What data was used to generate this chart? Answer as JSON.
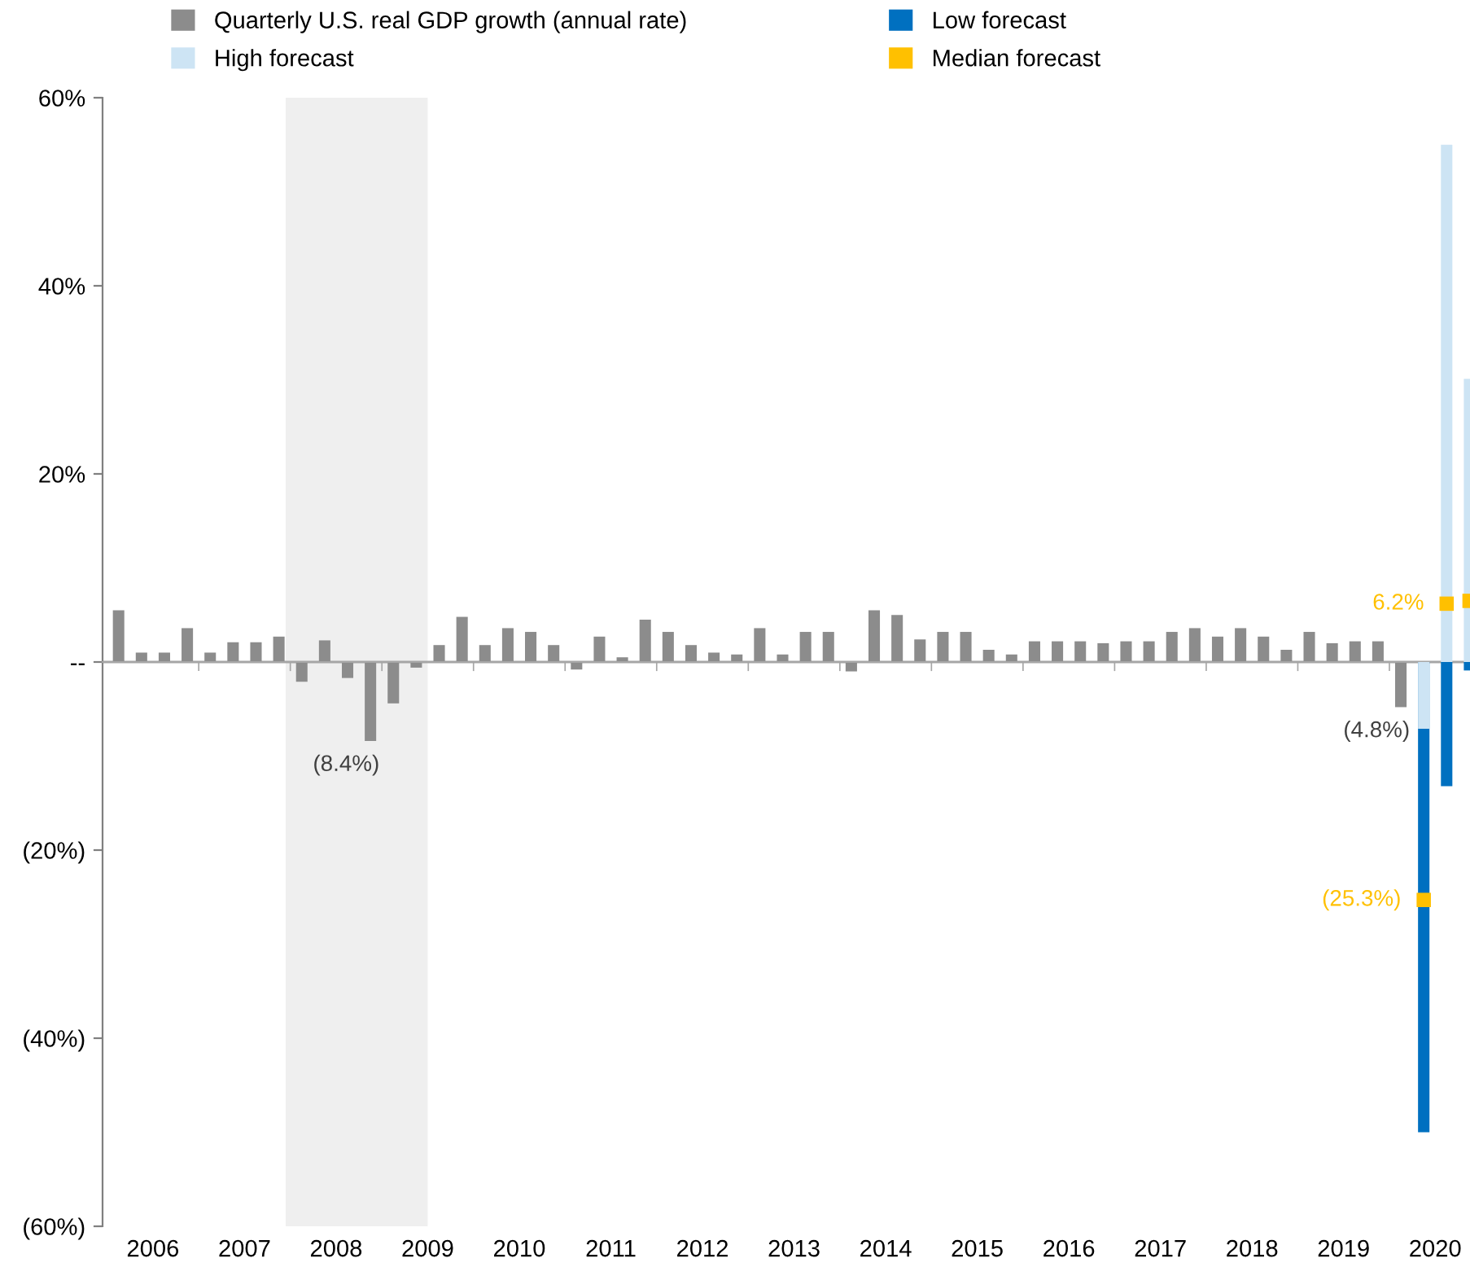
{
  "chart_data": {
    "type": "bar",
    "xlim": [
      2005.95,
      2020.88
    ],
    "xticks": [
      {
        "value": 2006.5,
        "label": "2006"
      },
      {
        "value": 2007.5,
        "label": "2007"
      },
      {
        "value": 2008.5,
        "label": "2008"
      },
      {
        "value": 2009.5,
        "label": "2009"
      },
      {
        "value": 2010.5,
        "label": "2010"
      },
      {
        "value": 2011.5,
        "label": "2011"
      },
      {
        "value": 2012.5,
        "label": "2012"
      },
      {
        "value": 2013.5,
        "label": "2013"
      },
      {
        "value": 2014.5,
        "label": "2014"
      },
      {
        "value": 2015.5,
        "label": "2015"
      },
      {
        "value": 2016.5,
        "label": "2016"
      },
      {
        "value": 2017.5,
        "label": "2017"
      },
      {
        "value": 2018.5,
        "label": "2018"
      },
      {
        "value": 2019.5,
        "label": "2019"
      },
      {
        "value": 2020.5,
        "label": "2020"
      },
      {
        "value": 2007,
        "label": null
      },
      {
        "value": 2008,
        "label": null
      },
      {
        "value": 2009,
        "label": null
      },
      {
        "value": 2010,
        "label": null
      },
      {
        "value": 2011,
        "label": null
      },
      {
        "value": 2012,
        "label": null
      },
      {
        "value": 2013,
        "label": null
      },
      {
        "value": 2014,
        "label": null
      },
      {
        "value": 2015,
        "label": null
      },
      {
        "value": 2016,
        "label": null
      },
      {
        "value": 2017,
        "label": null
      },
      {
        "value": 2018,
        "label": null
      },
      {
        "value": 2019,
        "label": null
      },
      {
        "value": 2020,
        "label": null
      }
    ],
    "ylim": [
      -60,
      60
    ],
    "yticks": [
      {
        "value": 60,
        "label": "60%"
      },
      {
        "value": 40,
        "label": "40%"
      },
      {
        "value": 20,
        "label": "20%"
      },
      {
        "value": 0,
        "label": "--"
      },
      {
        "value": -20,
        "label": "(20%)"
      },
      {
        "value": -40,
        "label": "(40%)"
      },
      {
        "value": -60,
        "label": "(60%)"
      }
    ],
    "grid": false,
    "legend": "top",
    "bands": [
      {
        "axis": "x",
        "from": 2007.95,
        "to": 2009.5,
        "color": "#efefef"
      }
    ],
    "ref_lines": [
      {
        "axis": "y",
        "value": 0,
        "color": "#a6a6a6"
      }
    ],
    "series": [
      {
        "name": "Quarterly U.S. real GDP growth (annual rate)",
        "color": "#8c8c8c",
        "x": [
          2006.125,
          2006.375,
          2006.625,
          2006.875,
          2007.125,
          2007.375,
          2007.625,
          2007.875,
          2008.125,
          2008.375,
          2008.625,
          2008.875,
          2009.125,
          2009.375,
          2009.625,
          2009.875,
          2010.125,
          2010.375,
          2010.625,
          2010.875,
          2011.125,
          2011.375,
          2011.625,
          2011.875,
          2012.125,
          2012.375,
          2012.625,
          2012.875,
          2013.125,
          2013.375,
          2013.625,
          2013.875,
          2014.125,
          2014.375,
          2014.625,
          2014.875,
          2015.125,
          2015.375,
          2015.625,
          2015.875,
          2016.125,
          2016.375,
          2016.625,
          2016.875,
          2017.125,
          2017.375,
          2017.625,
          2017.875,
          2018.125,
          2018.375,
          2018.625,
          2018.875,
          2019.125,
          2019.375,
          2019.625,
          2019.875,
          2020.125
        ],
        "values": [
          5.5,
          1.0,
          1.0,
          3.6,
          1.0,
          2.1,
          2.1,
          2.7,
          -2.1,
          2.3,
          -1.7,
          -8.4,
          -4.4,
          -0.6,
          1.8,
          4.8,
          1.8,
          3.6,
          3.2,
          1.8,
          -0.8,
          2.7,
          0.5,
          4.5,
          3.2,
          1.8,
          1.0,
          0.8,
          3.6,
          0.8,
          3.2,
          3.2,
          -1.0,
          5.5,
          5.0,
          2.4,
          3.2,
          3.2,
          1.3,
          0.8,
          2.2,
          2.2,
          2.2,
          2.0,
          2.2,
          2.2,
          3.2,
          3.6,
          2.7,
          3.6,
          2.7,
          1.3,
          3.2,
          2.0,
          2.2,
          2.2,
          -4.8
        ],
        "value_labels": [
          null,
          null,
          null,
          null,
          null,
          null,
          null,
          null,
          null,
          null,
          null,
          "(8.4%)",
          null,
          null,
          null,
          null,
          null,
          null,
          null,
          null,
          null,
          null,
          null,
          null,
          null,
          null,
          null,
          null,
          null,
          null,
          null,
          null,
          null,
          null,
          null,
          null,
          null,
          null,
          null,
          null,
          null,
          null,
          null,
          null,
          null,
          null,
          null,
          null,
          null,
          null,
          null,
          null,
          null,
          null,
          null,
          null,
          "(4.8%)"
        ]
      },
      {
        "name": "Low forecast",
        "color": "#0070c0",
        "x": [
          2020.375,
          2020.625,
          2020.875
        ],
        "values": [
          -50,
          -13.2,
          -0.9
        ]
      },
      {
        "name": "High forecast",
        "color": "#cde4f4",
        "x": [
          2020.375,
          2020.625,
          2020.875
        ],
        "values": [
          -7.1,
          55,
          30.1
        ]
      },
      {
        "name": "Median forecast",
        "color": "#ffc000",
        "type": "scatter",
        "marker": "square",
        "x": [
          2020.375,
          2020.625,
          2020.875
        ],
        "values": [
          -25.3,
          6.2,
          6.5
        ],
        "value_labels": [
          "(25.3%)",
          "6.2%",
          null
        ]
      }
    ]
  }
}
